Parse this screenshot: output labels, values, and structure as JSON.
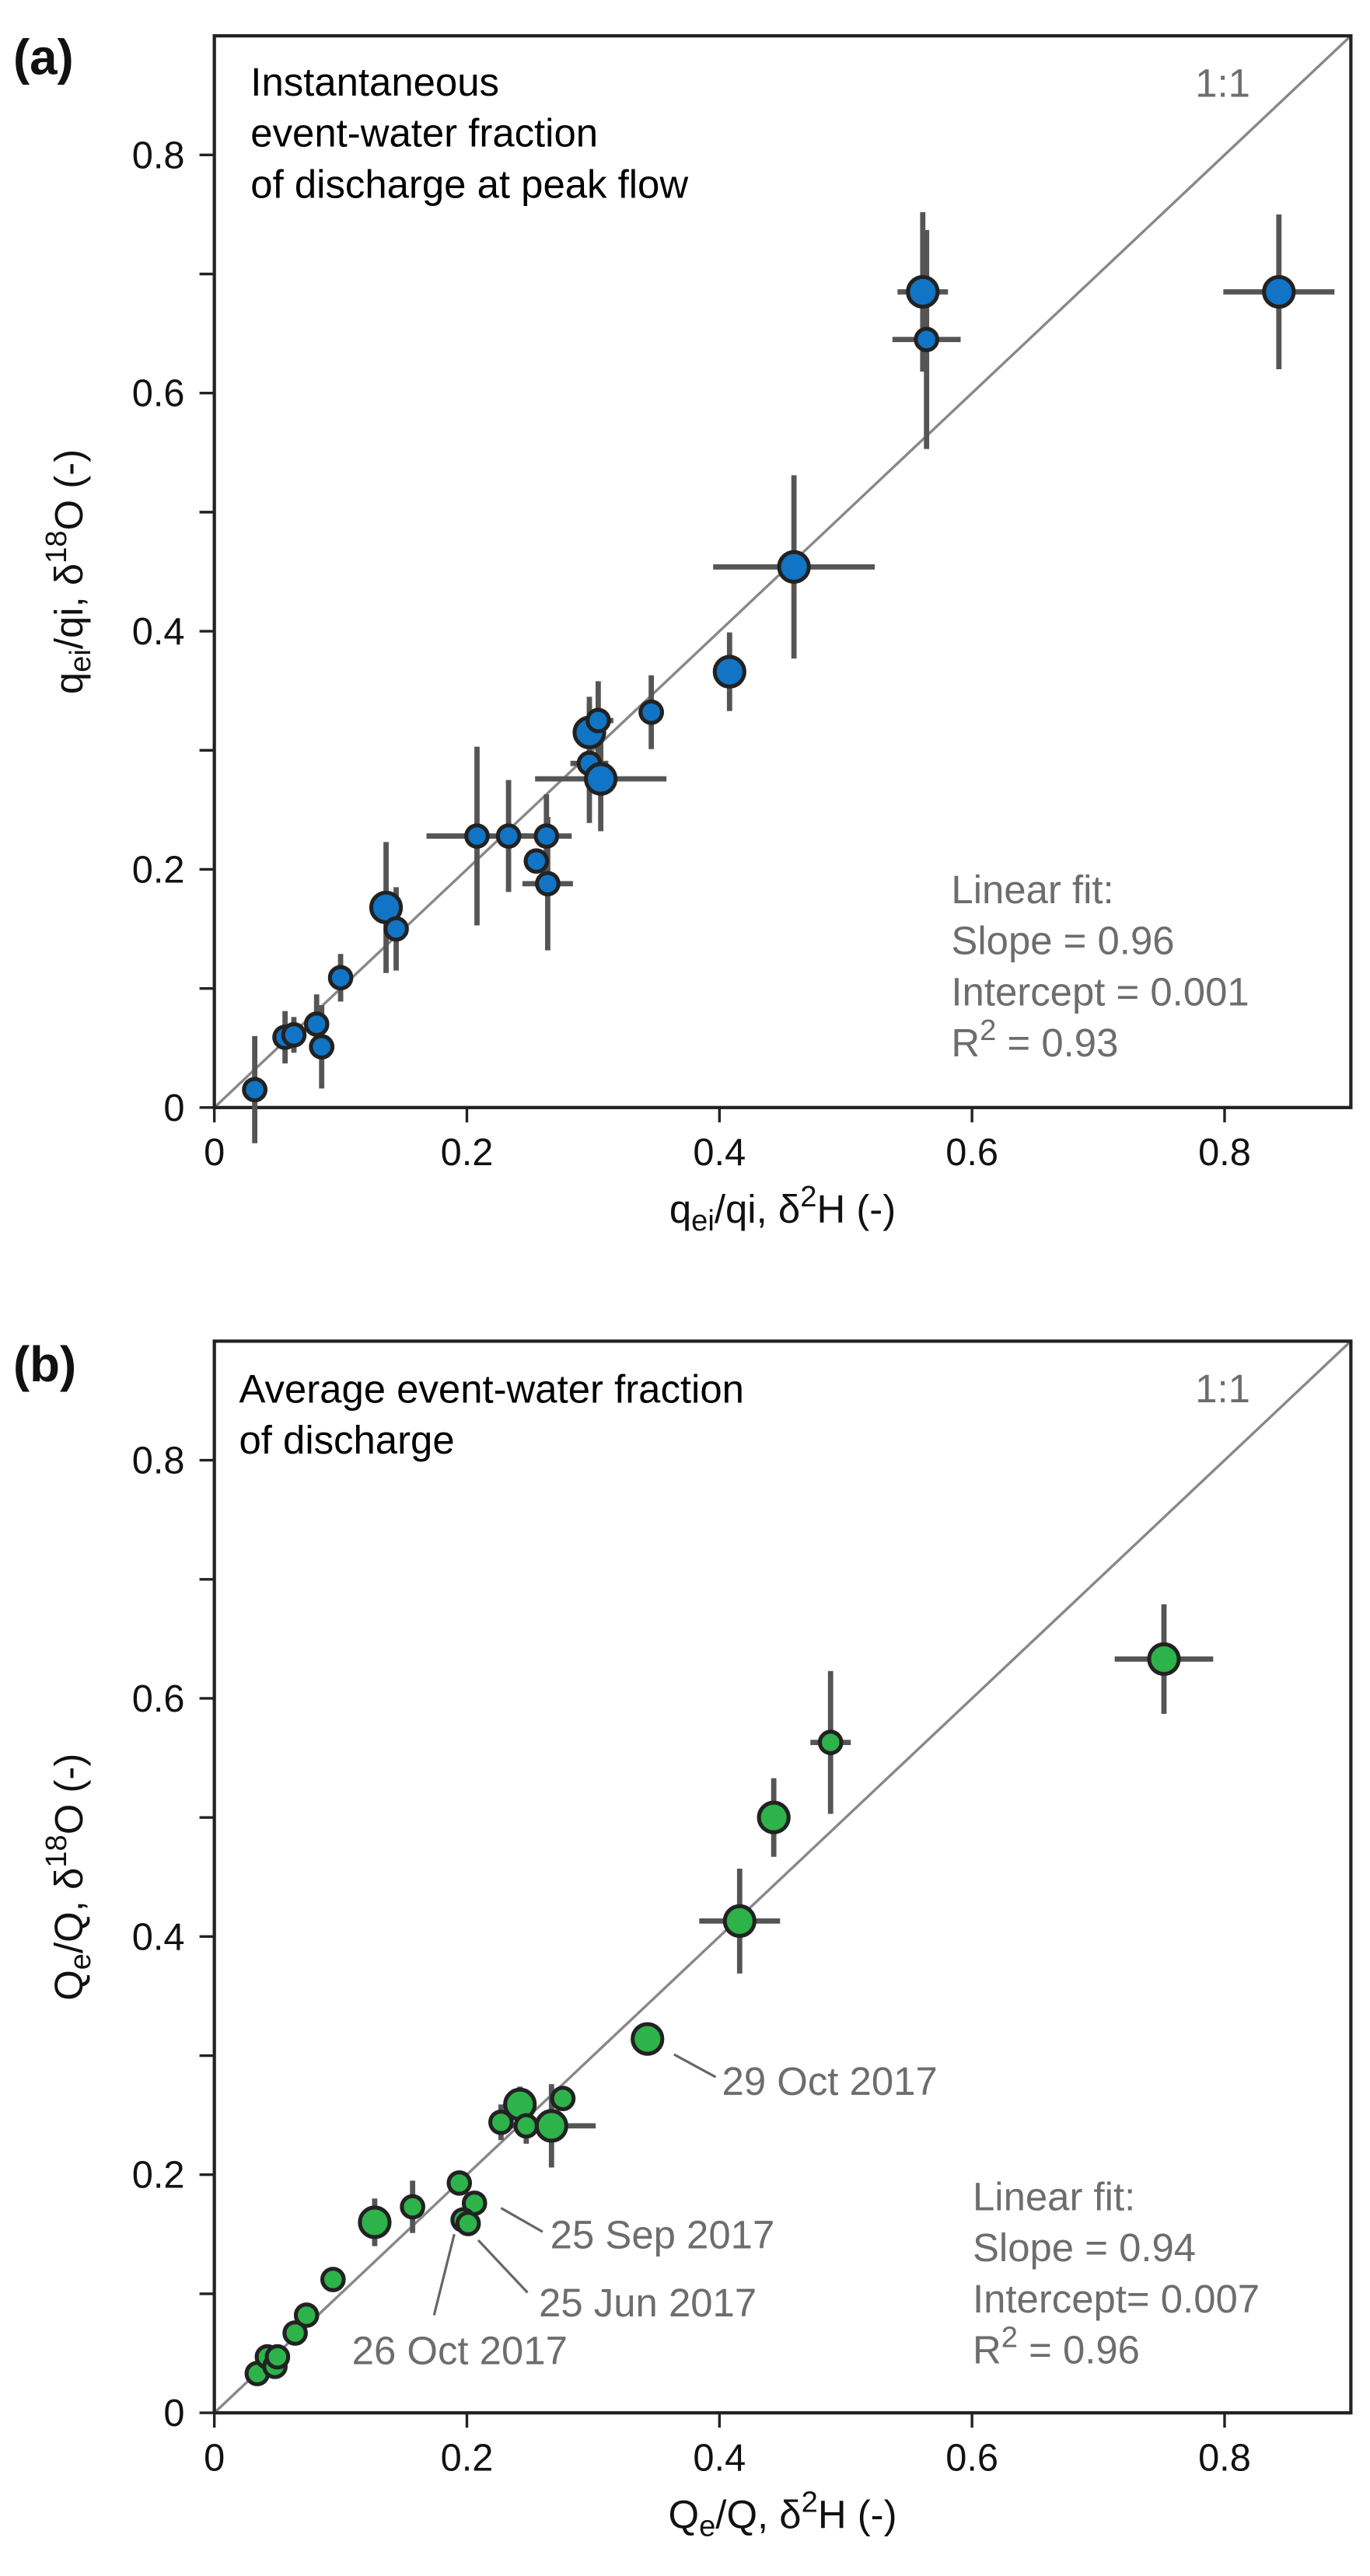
{
  "chart_data": [
    {
      "type": "scatter",
      "panel_label": "(a)",
      "title_lines": [
        "Instantaneous",
        "event-water fraction",
        "of discharge at peak flow"
      ],
      "xlabel": [
        {
          "t": "q"
        },
        {
          "t": "ei",
          "sub": true
        },
        {
          "t": "/qi, δ"
        },
        {
          "t": "2",
          "sup": true
        },
        {
          "t": "H (-)"
        }
      ],
      "ylabel": [
        {
          "t": "q"
        },
        {
          "t": "ei",
          "sub": true
        },
        {
          "t": "/qi, δ"
        },
        {
          "t": "18",
          "sup": true
        },
        {
          "t": "O (-)"
        }
      ],
      "xlim": [
        0,
        0.9
      ],
      "ylim": [
        0,
        0.9
      ],
      "xticks": [
        "0",
        "0.2",
        "0.4",
        "0.6",
        "0.8"
      ],
      "yticks": [
        "0",
        "0.2",
        "0.4",
        "0.6",
        "0.8"
      ],
      "one_to_one_label": "1:1",
      "fit_lines": [
        "Linear fit:",
        "Slope = 0.96",
        "Intercept = 0.001"
      ],
      "fit_r2": {
        "prefix": "R",
        "sup": "2",
        "value": " = 0.93"
      },
      "color": "#1174c4",
      "points": [
        {
          "x": 0.032,
          "y": 0.015,
          "xerr": 0.01,
          "yerr": 0.045,
          "big": false
        },
        {
          "x": 0.056,
          "y": 0.059,
          "xerr": 0.01,
          "yerr": 0.022,
          "big": false
        },
        {
          "x": 0.063,
          "y": 0.061,
          "xerr": 0.008,
          "yerr": 0.015,
          "big": false
        },
        {
          "x": 0.081,
          "y": 0.07,
          "xerr": 0.008,
          "yerr": 0.025,
          "big": false
        },
        {
          "x": 0.085,
          "y": 0.051,
          "xerr": 0.01,
          "yerr": 0.035,
          "big": false
        },
        {
          "x": 0.1,
          "y": 0.109,
          "xerr": 0.005,
          "yerr": 0.02,
          "big": false
        },
        {
          "x": 0.136,
          "y": 0.168,
          "xerr": 0.013,
          "yerr": 0.055,
          "big": true
        },
        {
          "x": 0.144,
          "y": 0.15,
          "xerr": 0.005,
          "yerr": 0.035,
          "big": false
        },
        {
          "x": 0.208,
          "y": 0.228,
          "xerr": 0.04,
          "yerr": 0.075,
          "big": false
        },
        {
          "x": 0.233,
          "y": 0.228,
          "xerr": 0.01,
          "yerr": 0.047,
          "big": false
        },
        {
          "x": 0.263,
          "y": 0.228,
          "xerr": 0.02,
          "yerr": 0.035,
          "big": false
        },
        {
          "x": 0.255,
          "y": 0.207,
          "xerr": 0.005,
          "yerr": 0.01,
          "big": false
        },
        {
          "x": 0.264,
          "y": 0.188,
          "xerr": 0.02,
          "yerr": 0.056,
          "big": false
        },
        {
          "x": 0.297,
          "y": 0.289,
          "xerr": 0.015,
          "yerr": 0.05,
          "big": false
        },
        {
          "x": 0.306,
          "y": 0.276,
          "xerr": 0.052,
          "yerr": 0.044,
          "big": true
        },
        {
          "x": 0.297,
          "y": 0.315,
          "xerr": 0.012,
          "yerr": 0.03,
          "big": true
        },
        {
          "x": 0.304,
          "y": 0.325,
          "xerr": 0.012,
          "yerr": 0.033,
          "big": false
        },
        {
          "x": 0.346,
          "y": 0.332,
          "xerr": 0.01,
          "yerr": 0.031,
          "big": false
        },
        {
          "x": 0.408,
          "y": 0.366,
          "xerr": 0.005,
          "yerr": 0.033,
          "big": true
        },
        {
          "x": 0.459,
          "y": 0.454,
          "xerr": 0.064,
          "yerr": 0.077,
          "big": true
        },
        {
          "x": 0.561,
          "y": 0.685,
          "xerr": 0.02,
          "yerr": 0.067,
          "big": true
        },
        {
          "x": 0.564,
          "y": 0.645,
          "xerr": 0.027,
          "yerr": 0.092,
          "big": false
        },
        {
          "x": 0.843,
          "y": 0.685,
          "xerr": 0.044,
          "yerr": 0.065,
          "big": true
        }
      ],
      "annotations": []
    },
    {
      "type": "scatter",
      "panel_label": "(b)",
      "title_lines": [
        "Average event-water fraction",
        "of discharge"
      ],
      "xlabel": [
        {
          "t": "Q"
        },
        {
          "t": "e",
          "sub": true
        },
        {
          "t": "/Q, δ"
        },
        {
          "t": "2",
          "sup": true
        },
        {
          "t": "H (-)"
        }
      ],
      "ylabel": [
        {
          "t": "Q"
        },
        {
          "t": "e",
          "sub": true
        },
        {
          "t": "/Q, δ"
        },
        {
          "t": "18",
          "sup": true
        },
        {
          "t": "O (-)"
        }
      ],
      "xlim": [
        0,
        0.9
      ],
      "ylim": [
        0,
        0.9
      ],
      "xticks": [
        "0",
        "0.2",
        "0.4",
        "0.6",
        "0.8"
      ],
      "yticks": [
        "0",
        "0.2",
        "0.4",
        "0.6",
        "0.8"
      ],
      "one_to_one_label": "1:1",
      "fit_lines": [
        "Linear fit:",
        "Slope = 0.94",
        "Intercept= 0.007"
      ],
      "fit_r2": {
        "prefix": "R",
        "sup": "2",
        "value": " = 0.96"
      },
      "color": "#2db34a",
      "points": [
        {
          "x": 0.034,
          "y": 0.033,
          "xerr": 0,
          "yerr": 0,
          "big": false
        },
        {
          "x": 0.042,
          "y": 0.047,
          "xerr": 0,
          "yerr": 0,
          "big": false
        },
        {
          "x": 0.048,
          "y": 0.039,
          "xerr": 0,
          "yerr": 0,
          "big": false
        },
        {
          "x": 0.05,
          "y": 0.047,
          "xerr": 0,
          "yerr": 0,
          "big": false
        },
        {
          "x": 0.064,
          "y": 0.067,
          "xerr": 0,
          "yerr": 0,
          "big": false
        },
        {
          "x": 0.073,
          "y": 0.082,
          "xerr": 0,
          "yerr": 0,
          "big": false
        },
        {
          "x": 0.094,
          "y": 0.112,
          "xerr": 0,
          "yerr": 0,
          "big": false
        },
        {
          "x": 0.127,
          "y": 0.16,
          "xerr": 0,
          "yerr": 0.02,
          "big": true
        },
        {
          "x": 0.157,
          "y": 0.173,
          "xerr": 0,
          "yerr": 0.022,
          "big": false
        },
        {
          "x": 0.194,
          "y": 0.193,
          "xerr": 0,
          "yerr": 0.008,
          "big": false
        },
        {
          "x": 0.206,
          "y": 0.176,
          "xerr": 0,
          "yerr": 0.005,
          "big": false
        },
        {
          "x": 0.197,
          "y": 0.162,
          "xerr": 0,
          "yerr": 0.01,
          "big": false
        },
        {
          "x": 0.201,
          "y": 0.159,
          "xerr": 0,
          "yerr": 0.008,
          "big": false
        },
        {
          "x": 0.227,
          "y": 0.244,
          "xerr": 0.005,
          "yerr": 0.015,
          "big": false
        },
        {
          "x": 0.242,
          "y": 0.259,
          "xerr": 0,
          "yerr": 0.015,
          "big": true
        },
        {
          "x": 0.247,
          "y": 0.241,
          "xerr": 0,
          "yerr": 0.015,
          "big": false
        },
        {
          "x": 0.267,
          "y": 0.241,
          "xerr": 0.035,
          "yerr": 0.035,
          "big": true
        },
        {
          "x": 0.276,
          "y": 0.264,
          "xerr": 0,
          "yerr": 0.005,
          "big": false
        },
        {
          "x": 0.343,
          "y": 0.314,
          "xerr": 0,
          "yerr": 0,
          "big": true
        },
        {
          "x": 0.416,
          "y": 0.413,
          "xerr": 0.032,
          "yerr": 0.044,
          "big": true
        },
        {
          "x": 0.443,
          "y": 0.5,
          "xerr": 0,
          "yerr": 0.033,
          "big": true
        },
        {
          "x": 0.488,
          "y": 0.563,
          "xerr": 0.016,
          "yerr": 0.06,
          "big": false
        },
        {
          "x": 0.752,
          "y": 0.633,
          "xerr": 0.039,
          "yerr": 0.046,
          "big": true
        }
      ],
      "annotations": [
        "29 Oct 2017",
        "25 Sep 2017",
        "25 Jun 2017",
        "26 Oct 2017"
      ]
    }
  ]
}
